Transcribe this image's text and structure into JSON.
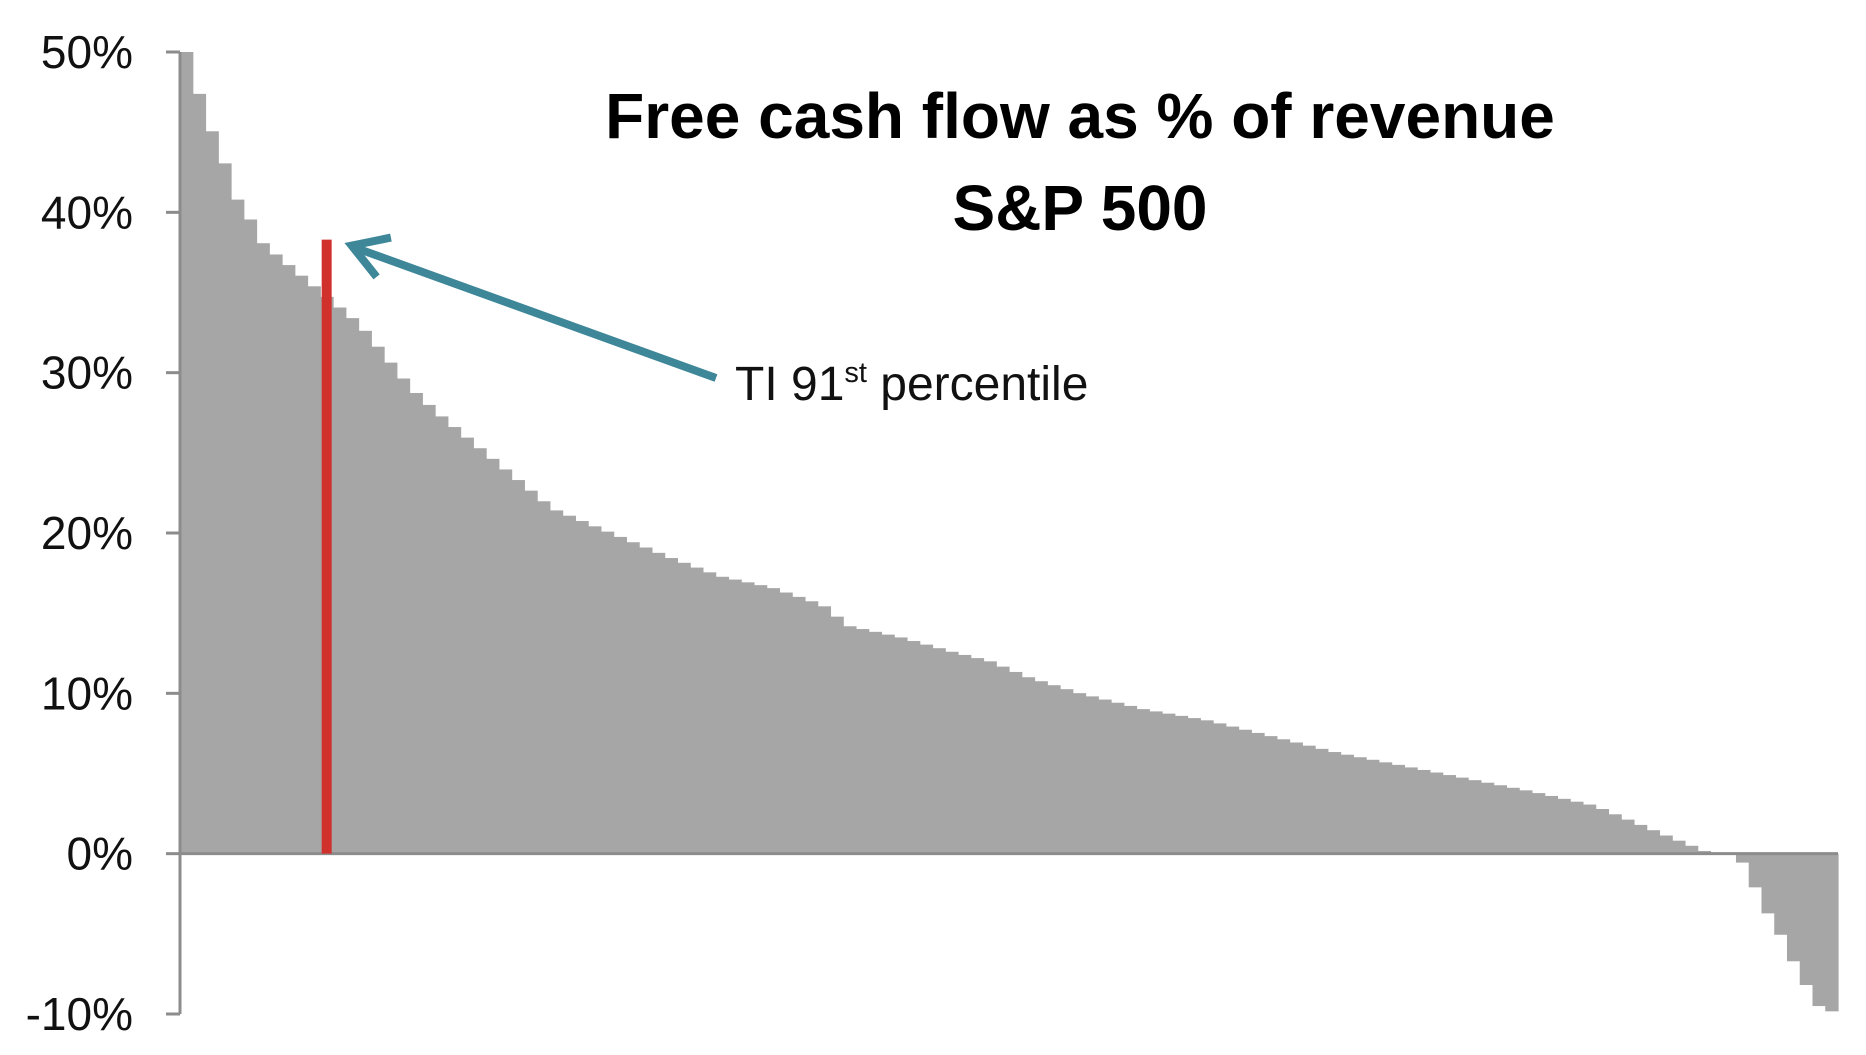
{
  "chart_data": {
    "type": "bar",
    "title": "Free cash flow as % of revenue",
    "subtitle": "S&P 500",
    "xlabel": "",
    "ylabel": "",
    "ylim": [
      -10,
      50
    ],
    "y_ticks": [
      50,
      40,
      30,
      20,
      10,
      0,
      -10
    ],
    "y_tick_labels": [
      "50%",
      "40%",
      "30%",
      "20%",
      "10%",
      "0%",
      "-10%"
    ],
    "grid": false,
    "colors": {
      "bars": "#a6a6a6",
      "highlight": "#d0312d",
      "arrow": "#3d8799",
      "axis": "#8c8c8c"
    },
    "curve_points": [
      [
        0,
        50
      ],
      [
        0.8,
        50
      ],
      [
        1.0,
        48
      ],
      [
        1.8,
        47
      ],
      [
        2.5,
        45
      ],
      [
        3.5,
        43
      ],
      [
        4.3,
        41
      ],
      [
        5.5,
        39.5
      ],
      [
        6.5,
        38
      ],
      [
        8.0,
        37
      ],
      [
        11,
        35
      ],
      [
        14,
        33
      ],
      [
        16,
        31
      ],
      [
        18,
        29
      ],
      [
        20,
        27.5
      ],
      [
        23,
        25.5
      ],
      [
        26,
        23.5
      ],
      [
        29,
        21.5
      ],
      [
        32,
        20.5
      ],
      [
        35,
        19.5
      ],
      [
        38,
        18.5
      ],
      [
        42,
        17.3
      ],
      [
        46,
        16.6
      ],
      [
        50,
        15.5
      ],
      [
        52,
        14.2
      ],
      [
        56,
        13.5
      ],
      [
        60,
        12.6
      ],
      [
        63,
        12.0
      ],
      [
        66,
        11.0
      ],
      [
        70,
        10.0
      ],
      [
        75,
        9.0
      ],
      [
        80,
        8.3
      ],
      [
        85,
        7.3
      ],
      [
        90,
        6.3
      ],
      [
        95,
        5.5
      ],
      [
        100,
        4.7
      ],
      [
        105,
        3.9
      ],
      [
        110,
        3.0
      ],
      [
        113,
        2.0
      ],
      [
        116,
        1.0
      ],
      [
        118.5,
        0.2
      ],
      [
        119,
        0
      ],
      [
        121,
        0
      ],
      [
        122,
        -1
      ],
      [
        123,
        -3
      ],
      [
        124.5,
        -5
      ],
      [
        126,
        -7.5
      ],
      [
        127.5,
        -9.5
      ],
      [
        129,
        -10
      ]
    ],
    "bar_count": 130,
    "highlight": {
      "label": "TI 91",
      "label_superscript": "st",
      "label_suffix": " percentile",
      "bar_index": 11,
      "value": 38.3
    }
  }
}
